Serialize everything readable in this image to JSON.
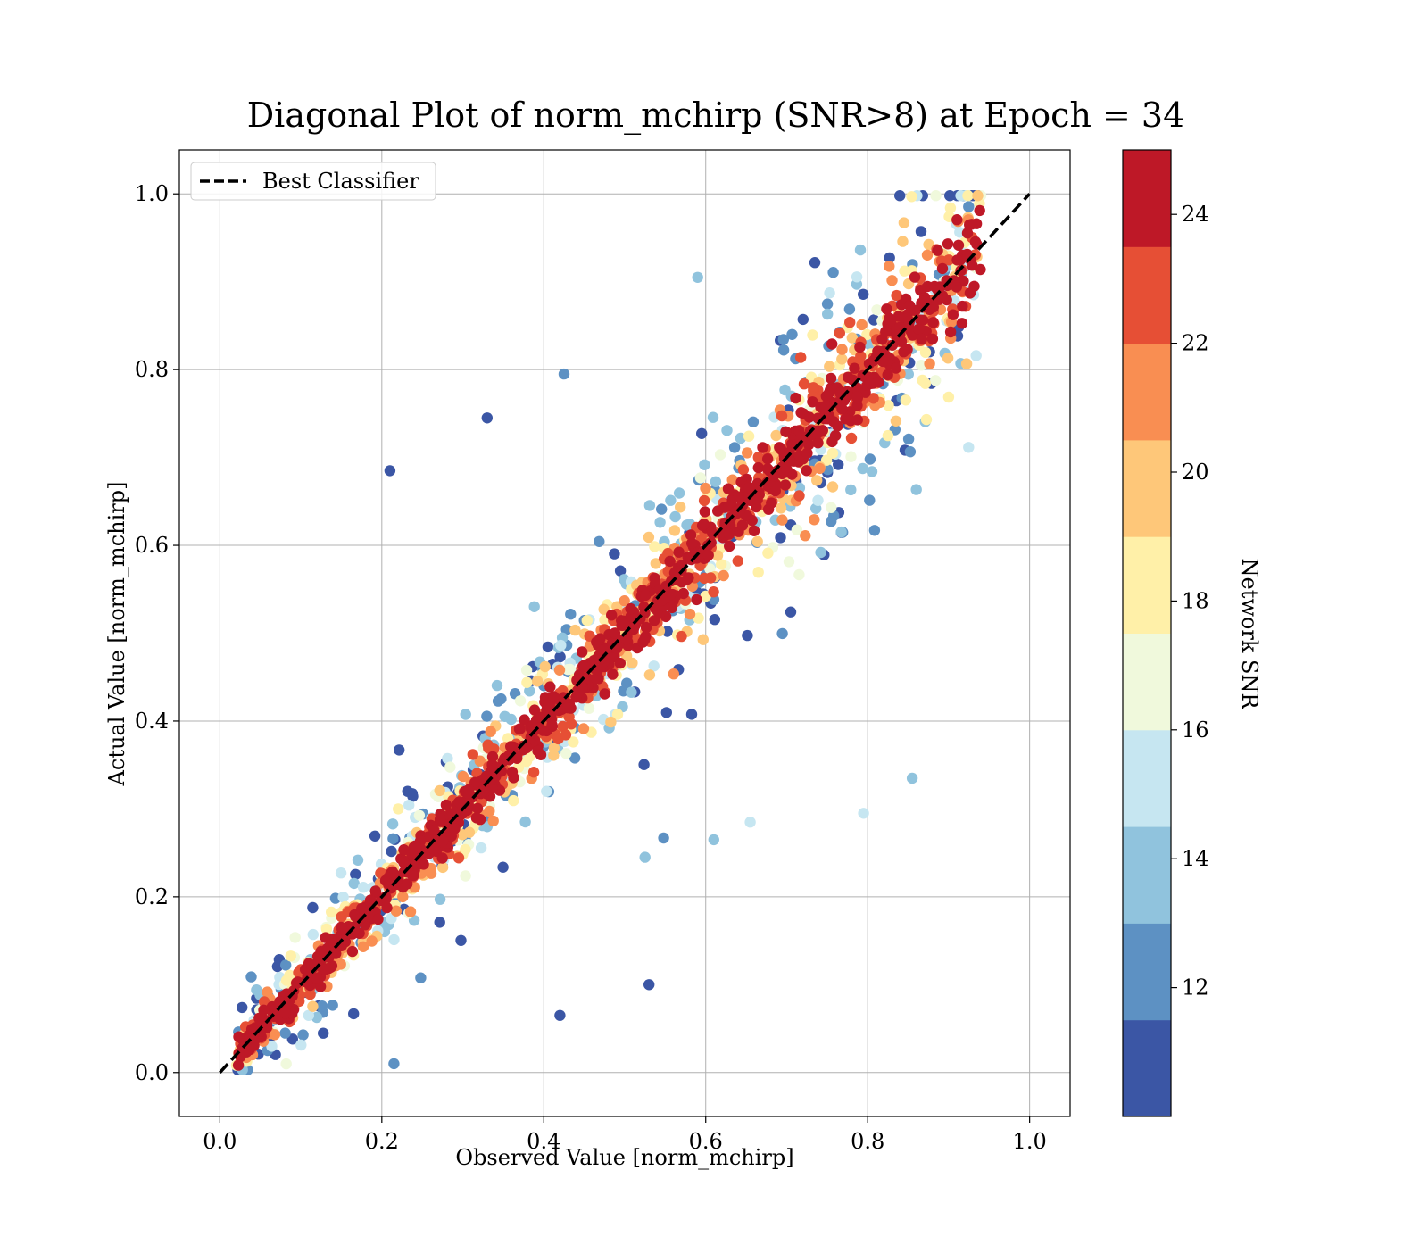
{
  "chart_data": {
    "type": "scatter",
    "title": "Diagonal Plot of norm_mchirp (SNR>8) at Epoch = 34",
    "xlabel": "Observed Value [norm_mchirp]",
    "ylabel": "Actual Value [norm_mchirp]",
    "xlim": [
      -0.05,
      1.05
    ],
    "ylim": [
      -0.05,
      1.05
    ],
    "xticks": [
      "0.0",
      "0.2",
      "0.4",
      "0.6",
      "0.8",
      "1.0"
    ],
    "yticks": [
      "0.0",
      "0.2",
      "0.4",
      "0.6",
      "0.8",
      "1.0"
    ],
    "grid": true,
    "legend": {
      "placement": "top-left",
      "entries": [
        "Best Classifier"
      ]
    },
    "reference_line": {
      "label": "Best Classifier",
      "x": [
        0,
        1
      ],
      "y": [
        0,
        1
      ],
      "style": "dashed",
      "color": "#000000"
    },
    "colorbar": {
      "label": "Network SNR",
      "range": [
        10,
        25
      ],
      "ticks": [
        "12",
        "14",
        "16",
        "18",
        "20",
        "22",
        "24"
      ],
      "colormap": [
        "#313695",
        "#4575b4",
        "#74add1",
        "#abd9e9",
        "#e0f3f8",
        "#ffffbf",
        "#fee090",
        "#fdae61",
        "#f46d43",
        "#d73027",
        "#a50026"
      ]
    },
    "points": {
      "count": 2200,
      "x_range": [
        0.02,
        0.94
      ],
      "relation": "actual ≈ observed with spread shrinking as SNR increases",
      "highlighted_outliers": [
        [
          0.21,
          0.685
        ],
        [
          0.33,
          0.745
        ],
        [
          0.425,
          0.795
        ],
        [
          0.59,
          0.905
        ],
        [
          0.855,
          0.335
        ],
        [
          0.795,
          0.295
        ],
        [
          0.53,
          0.1
        ],
        [
          0.42,
          0.065
        ],
        [
          0.215,
          0.01
        ],
        [
          0.525,
          0.245
        ],
        [
          0.61,
          0.265
        ],
        [
          0.655,
          0.285
        ]
      ]
    },
    "snr_bins": [
      "10-11",
      "11-13",
      "13-14",
      "14-16",
      "16-17",
      "17-19",
      "19-20",
      "20-22",
      "22-23",
      "23-25"
    ]
  }
}
